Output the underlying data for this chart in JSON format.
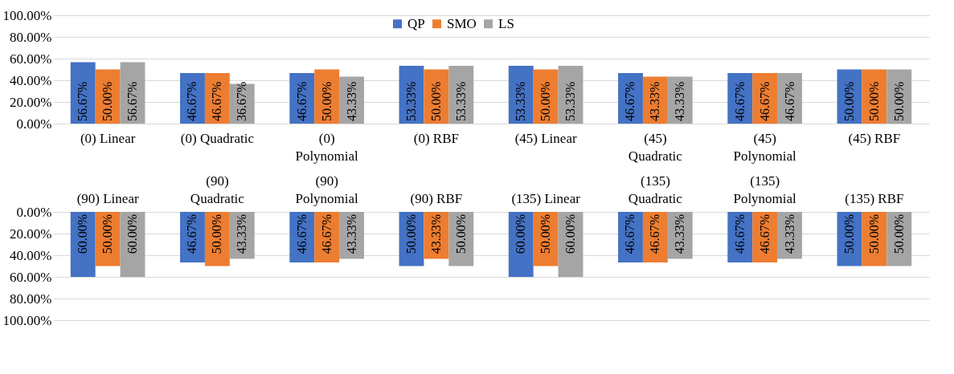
{
  "chart_data": [
    {
      "type": "bar",
      "categories": [
        "(0) Linear",
        "(0) Quadratic",
        "(0) Polynomial",
        "(0) RBF",
        "(45) Linear",
        "(45) Quadratic",
        "(45) Polynomial",
        "(45) RBF"
      ],
      "series": [
        {
          "name": "QP",
          "color": "#4472c4",
          "values": [
            56.67,
            46.67,
            46.67,
            53.33,
            53.33,
            46.67,
            46.67,
            50.0
          ],
          "value_labels": [
            "56.67%",
            "46.67%",
            "46.67%",
            "53.33%",
            "53.33%",
            "46.67%",
            "46.67%",
            "50.00%"
          ]
        },
        {
          "name": "SMO",
          "color": "#ed7d31",
          "values": [
            50.0,
            46.67,
            50.0,
            50.0,
            50.0,
            43.33,
            46.67,
            50.0
          ],
          "value_labels": [
            "50.00%",
            "46.67%",
            "50.00%",
            "50.00%",
            "50.00%",
            "43.33%",
            "46.67%",
            "50.00%"
          ]
        },
        {
          "name": "LS",
          "color": "#a5a5a5",
          "values": [
            56.67,
            36.67,
            43.33,
            53.33,
            53.33,
            43.33,
            46.67,
            50.0
          ],
          "value_labels": [
            "56.67%",
            "36.67%",
            "43.33%",
            "53.33%",
            "53.33%",
            "43.33%",
            "46.67%",
            "50.00%"
          ]
        }
      ],
      "ylim": [
        0,
        100
      ],
      "yticks": [
        {
          "value": 0,
          "label": "0.00%"
        },
        {
          "value": 20,
          "label": "20.00%"
        },
        {
          "value": 40,
          "label": "40.00%"
        },
        {
          "value": 60,
          "label": "60.00%"
        },
        {
          "value": 80,
          "label": "80.00%"
        },
        {
          "value": 100,
          "label": "100.00%"
        }
      ],
      "grid": "y",
      "legend": "top"
    },
    {
      "type": "bar",
      "categories": [
        "(90) Linear",
        "(90) Quadratic",
        "(90) Polynomial",
        "(90) RBF",
        "(135) Linear",
        "(135) Quadratic",
        "(135) Polynomial",
        "(135) RBF"
      ],
      "series": [
        {
          "color": "#4472c4",
          "values": [
            60.0,
            46.67,
            46.67,
            50.0,
            60.0,
            46.67,
            46.67,
            50.0
          ],
          "value_labels": [
            "60.00%",
            "46.67%",
            "46.67%",
            "50.00%",
            "60.00%",
            "46.67%",
            "46.67%",
            "50.00%"
          ]
        },
        {
          "color": "#ed7d31",
          "values": [
            50.0,
            50.0,
            46.67,
            43.33,
            50.0,
            46.67,
            46.67,
            50.0
          ],
          "value_labels": [
            "50.00%",
            "50.00%",
            "46.67%",
            "43.33%",
            "50.00%",
            "46.67%",
            "46.67%",
            "50.00%"
          ]
        },
        {
          "color": "#a5a5a5",
          "values": [
            60.0,
            43.33,
            43.33,
            50.0,
            60.0,
            43.33,
            43.33,
            50.0
          ],
          "value_labels": [
            "60.00%",
            "43.33%",
            "43.33%",
            "50.00%",
            "60.00%",
            "43.33%",
            "43.33%",
            "50.00%"
          ]
        }
      ],
      "ylim": [
        100,
        0
      ],
      "yticks": [
        {
          "value": 0,
          "label": "0.00%"
        },
        {
          "value": 20,
          "label": "20.00%"
        },
        {
          "value": 40,
          "label": "40.00%"
        },
        {
          "value": 60,
          "label": "60.00%"
        },
        {
          "value": 80,
          "label": "80.00%"
        },
        {
          "value": 100,
          "label": "100.00%"
        }
      ],
      "grid": "y",
      "legend": false
    }
  ]
}
